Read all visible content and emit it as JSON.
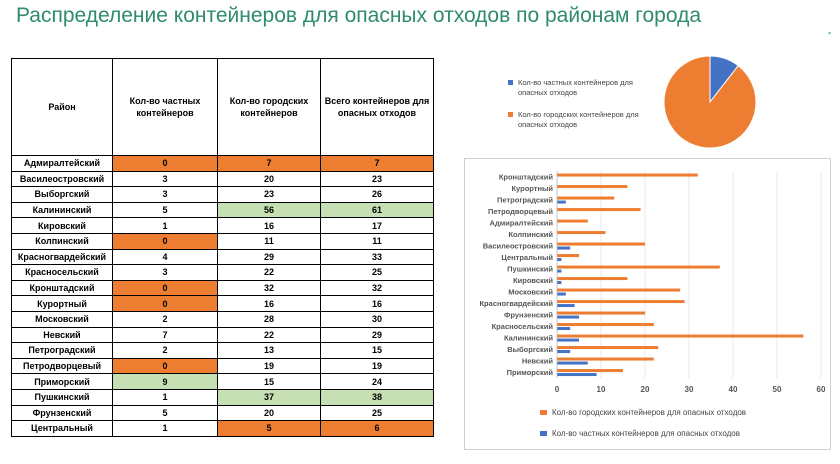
{
  "title": "Распределение контейнеров для опасных отходов по районам города",
  "colors": {
    "private": "#4472c4",
    "city": "#ed7d31",
    "highlight_orange": "#ed7d31",
    "highlight_green": "#c6e0b4",
    "title": "#2e8b6e"
  },
  "table": {
    "headers": [
      "Район",
      "Кол-во частных контейнеров",
      "Кол-во городских контейнеров",
      "Всего контейнеров для опасных отходов"
    ],
    "rows": [
      {
        "district": "Адмиралтейский",
        "private": "0",
        "city": "7",
        "total": "7",
        "hl": [
          "o",
          "o",
          "o"
        ]
      },
      {
        "district": "Василеостровский",
        "private": "3",
        "city": "20",
        "total": "23",
        "hl": [
          "",
          "",
          ""
        ]
      },
      {
        "district": "Выборгский",
        "private": "3",
        "city": "23",
        "total": "26",
        "hl": [
          "",
          "",
          ""
        ]
      },
      {
        "district": "Калининский",
        "private": "5",
        "city": "56",
        "total": "61",
        "hl": [
          "",
          "g",
          "g"
        ]
      },
      {
        "district": "Кировский",
        "private": "1",
        "city": "16",
        "total": "17",
        "hl": [
          "",
          "",
          ""
        ]
      },
      {
        "district": "Колпинский",
        "private": "0",
        "city": "11",
        "total": "11",
        "hl": [
          "o",
          "",
          ""
        ]
      },
      {
        "district": "Красногвардейский",
        "private": "4",
        "city": "29",
        "total": "33",
        "hl": [
          "",
          "",
          ""
        ]
      },
      {
        "district": "Красносельский",
        "private": "3",
        "city": "22",
        "total": "25",
        "hl": [
          "",
          "",
          ""
        ]
      },
      {
        "district": "Кронштадский",
        "private": "0",
        "city": "32",
        "total": "32",
        "hl": [
          "o",
          "",
          ""
        ]
      },
      {
        "district": "Курортный",
        "private": "0",
        "city": "16",
        "total": "16",
        "hl": [
          "o",
          "",
          ""
        ]
      },
      {
        "district": "Московский",
        "private": "2",
        "city": "28",
        "total": "30",
        "hl": [
          "",
          "",
          ""
        ]
      },
      {
        "district": "Невский",
        "private": "7",
        "city": "22",
        "total": "29",
        "hl": [
          "",
          "",
          ""
        ]
      },
      {
        "district": "Петроградский",
        "private": "2",
        "city": "13",
        "total": "15",
        "hl": [
          "",
          "",
          ""
        ]
      },
      {
        "district": "Петродворцевый",
        "private": "0",
        "city": "19",
        "total": "19",
        "hl": [
          "o",
          "",
          ""
        ]
      },
      {
        "district": "Приморский",
        "private": "9",
        "city": "15",
        "total": "24",
        "hl": [
          "g",
          "",
          ""
        ]
      },
      {
        "district": "Пушкинский",
        "private": "1",
        "city": "37",
        "total": "38",
        "hl": [
          "",
          "g",
          "g"
        ]
      },
      {
        "district": "Фрунзенский",
        "private": "5",
        "city": "20",
        "total": "25",
        "hl": [
          "",
          "",
          ""
        ]
      },
      {
        "district": "Центральный",
        "private": "1",
        "city": "5",
        "total": "6",
        "hl": [
          "",
          "o",
          "o"
        ]
      }
    ]
  },
  "chart_data": [
    {
      "type": "pie",
      "categories": [
        "Кол-во частных контейнеров для опасных отходов",
        "Кол-во городских контейнеров для опасных отходов"
      ],
      "values": [
        46,
        391
      ],
      "colors": [
        "#4472c4",
        "#ed7d31"
      ],
      "legend": "left"
    },
    {
      "type": "bar",
      "orientation": "horizontal",
      "categories": [
        "Кронштадский",
        "Курортный",
        "Петроградский",
        "Петродворцевый",
        "Адмиралтейский",
        "Колпинский",
        "Василеостровский",
        "Центральный",
        "Пушкинский",
        "Кировский",
        "Московский",
        "Красногвардейский",
        "Фрунзенский",
        "Красносельский",
        "Калининский",
        "Выборгский",
        "Невский",
        "Приморский"
      ],
      "series": [
        {
          "name": "Кол-во городских контейнеров для опасных отходов",
          "color": "#ed7d31",
          "values": [
            32,
            16,
            13,
            19,
            7,
            11,
            20,
            5,
            37,
            16,
            28,
            29,
            20,
            22,
            56,
            23,
            22,
            15
          ]
        },
        {
          "name": "Кол-во частных контейнеров для опасных отходов",
          "color": "#4472c4",
          "values": [
            0,
            0,
            2,
            0,
            0,
            0,
            3,
            1,
            1,
            1,
            2,
            4,
            5,
            3,
            5,
            3,
            7,
            9
          ]
        }
      ],
      "xlim": [
        0,
        60
      ],
      "xticks": [
        0,
        10,
        20,
        30,
        40,
        50,
        60
      ],
      "grid": true,
      "legend": "bottom"
    }
  ]
}
